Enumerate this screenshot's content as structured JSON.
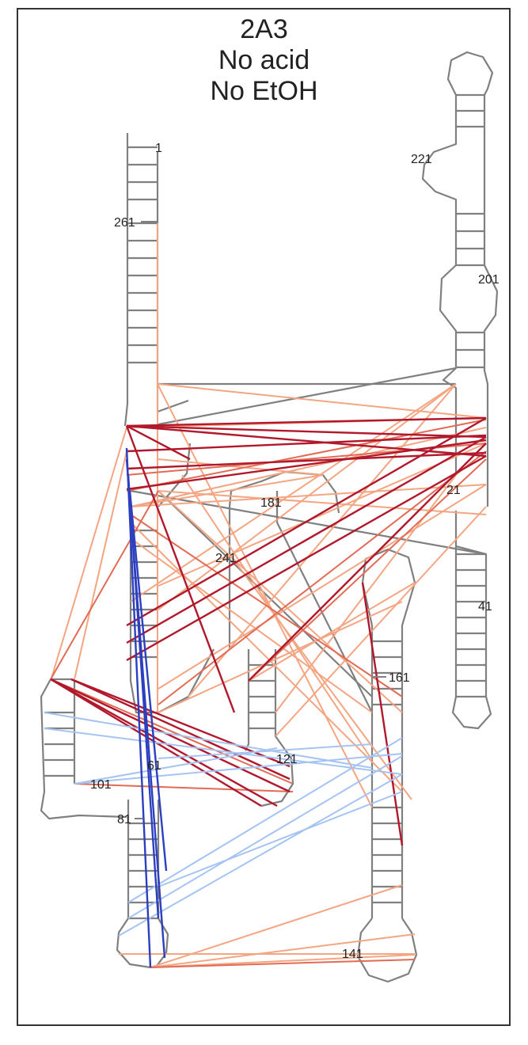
{
  "title": {
    "line1": "2A3",
    "line2": "No acid",
    "line3": "No EtOH"
  },
  "residue_labels": [
    "1",
    "21",
    "41",
    "61",
    "81",
    "101",
    "121",
    "141",
    "161",
    "181",
    "201",
    "221",
    "241",
    "261"
  ],
  "colors": {
    "backbone": "#808080",
    "strong_positive": "#b2182b",
    "medium_positive": "#e26b55",
    "weak_positive": "#f4a582",
    "strong_negative": "#2c3fbf",
    "weak_negative": "#a6c4f2"
  }
}
